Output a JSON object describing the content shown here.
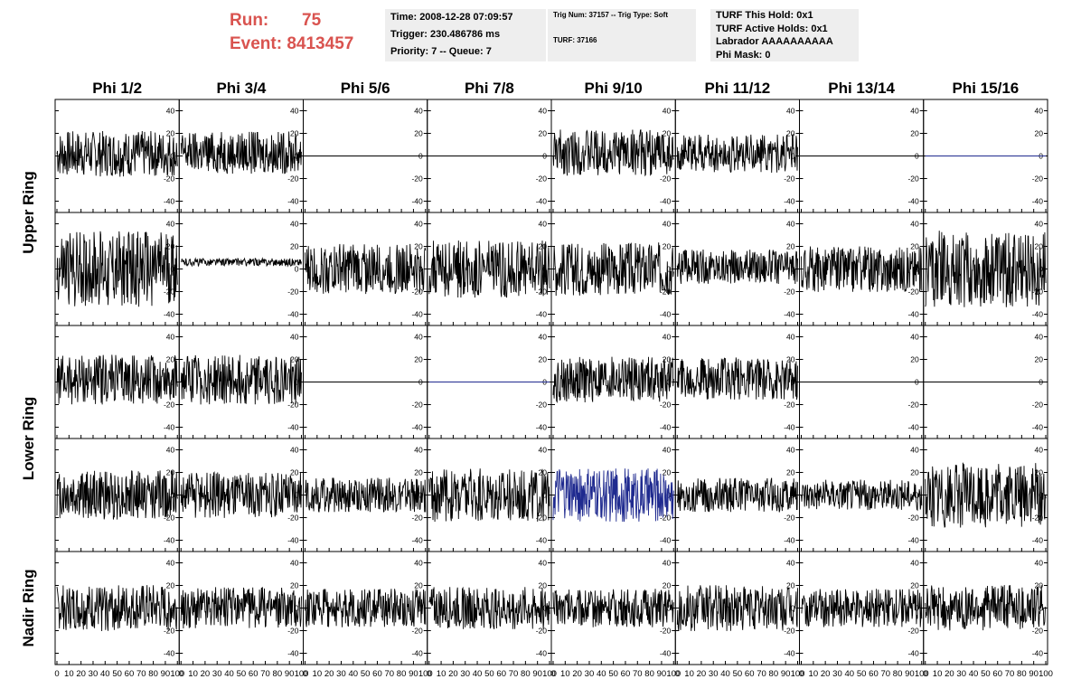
{
  "header": {
    "run_label": "Run:",
    "run_value": "75",
    "event_label": "Event:",
    "event_value": "8413457",
    "time_line": "Time: 2008-12-28 07:09:57",
    "trigger_line": "Trigger: 230.486786 ms",
    "priority_line": "Priority: 7 -- Queue: 7",
    "trig_line": "Trig Num: 37157 -- Trig Type: Soft",
    "turf_line": "TURF: 37166",
    "hold_line": "TURF This Hold: 0x1",
    "active_holds_line": "TURF Active Holds: 0x1",
    "labrador_line": "Labrador AAAAAAAAAA",
    "phi_mask_line": "Phi Mask: 0"
  },
  "chart_data": {
    "type": "line",
    "columns": [
      "Phi 1/2",
      "Phi 3/4",
      "Phi 5/6",
      "Phi 7/8",
      "Phi 9/10",
      "Phi 11/12",
      "Phi 13/14",
      "Phi 15/16"
    ],
    "ring_labels": [
      {
        "label": "Upper Ring",
        "rows": [
          0,
          1
        ]
      },
      {
        "label": "Lower Ring",
        "rows": [
          2,
          3
        ]
      },
      {
        "label": "Nadir Ring",
        "rows": [
          4,
          4
        ]
      }
    ],
    "xlim": [
      0,
      100
    ],
    "ylim": [
      -50,
      50
    ],
    "x_ticks": [
      0,
      10,
      20,
      30,
      40,
      50,
      60,
      70,
      80,
      90,
      100
    ],
    "x_tick_labels": [
      "0",
      "10",
      "20",
      "30",
      "40",
      "50",
      "60",
      "70",
      "80",
      "90",
      "100"
    ],
    "y_ticks": [
      -40,
      -20,
      0,
      20,
      40
    ],
    "y_tick_labels": [
      "-40",
      "-20",
      "0",
      "20",
      "40"
    ],
    "grid": false,
    "trace_color_default": "#000000",
    "trace_color_highlight": "#1f2a8f",
    "panels": [
      [
        {
          "amp": 12,
          "offset": 2,
          "color": "#000000"
        },
        {
          "amp": 11,
          "offset": 3,
          "color": "#000000"
        },
        {
          "amp": 0,
          "offset": 0,
          "color": "#000000"
        },
        {
          "amp": 0,
          "offset": 0,
          "color": "#000000"
        },
        {
          "amp": 12,
          "offset": 3,
          "color": "#000000"
        },
        {
          "amp": 10,
          "offset": 2,
          "color": "#000000"
        },
        {
          "amp": 0,
          "offset": 0,
          "color": "#000000"
        },
        {
          "amp": 0,
          "offset": 0,
          "color": "#1f2a8f"
        }
      ],
      [
        {
          "amp": 20,
          "offset": 0,
          "color": "#000000"
        },
        {
          "amp": 2,
          "offset": 6,
          "color": "#000000"
        },
        {
          "amp": 13,
          "offset": 0,
          "color": "#000000"
        },
        {
          "amp": 15,
          "offset": 0,
          "color": "#000000"
        },
        {
          "amp": 14,
          "offset": 0,
          "color": "#000000"
        },
        {
          "amp": 9,
          "offset": 2,
          "color": "#000000"
        },
        {
          "amp": 12,
          "offset": 0,
          "color": "#000000"
        },
        {
          "amp": 20,
          "offset": 0,
          "color": "#000000"
        }
      ],
      [
        {
          "amp": 13,
          "offset": 2,
          "color": "#000000"
        },
        {
          "amp": 13,
          "offset": 2,
          "color": "#000000"
        },
        {
          "amp": 0,
          "offset": 0,
          "color": "#000000"
        },
        {
          "amp": 0,
          "offset": 0,
          "color": "#1f2a8f"
        },
        {
          "amp": 12,
          "offset": 2,
          "color": "#000000"
        },
        {
          "amp": 11,
          "offset": 3,
          "color": "#000000"
        },
        {
          "amp": 0,
          "offset": 0,
          "color": "#000000"
        },
        {
          "amp": 0,
          "offset": 0,
          "color": "#000000"
        }
      ],
      [
        {
          "amp": 13,
          "offset": 0,
          "color": "#000000"
        },
        {
          "amp": 12,
          "offset": 0,
          "color": "#000000"
        },
        {
          "amp": 9,
          "offset": 0,
          "color": "#000000"
        },
        {
          "amp": 14,
          "offset": 0,
          "color": "#000000"
        },
        {
          "amp": 14,
          "offset": 0,
          "color": "#1f2a8f"
        },
        {
          "amp": 9,
          "offset": 0,
          "color": "#000000"
        },
        {
          "amp": 8,
          "offset": 0,
          "color": "#000000"
        },
        {
          "amp": 17,
          "offset": 0,
          "color": "#000000"
        }
      ],
      [
        {
          "amp": 12,
          "offset": 0,
          "color": "#000000"
        },
        {
          "amp": 11,
          "offset": 0,
          "color": "#000000"
        },
        {
          "amp": 10,
          "offset": 0,
          "color": "#000000"
        },
        {
          "amp": 11,
          "offset": 0,
          "color": "#000000"
        },
        {
          "amp": 10,
          "offset": 0,
          "color": "#000000"
        },
        {
          "amp": 12,
          "offset": 0,
          "color": "#000000"
        },
        {
          "amp": 10,
          "offset": 0,
          "color": "#000000"
        },
        {
          "amp": 12,
          "offset": 0,
          "color": "#000000"
        }
      ]
    ]
  }
}
